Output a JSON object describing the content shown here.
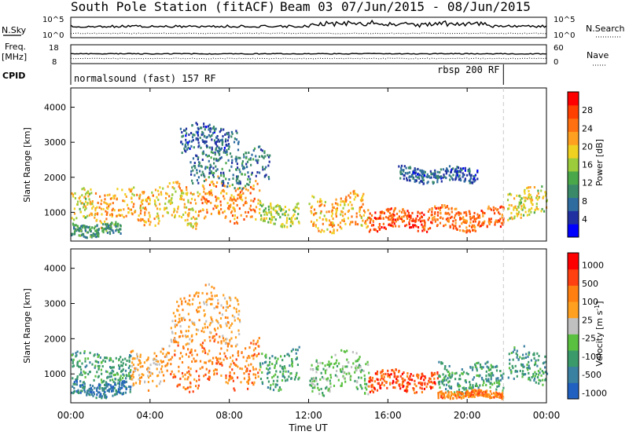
{
  "header": {
    "title": "South Pole Station (fitACF)",
    "beam": "Beam 03",
    "dates": "07/Jun/2015 - 08/Jun/2015"
  },
  "summary": {
    "nsky_label": "N.Sky",
    "nsearch_label": "N.Search",
    "freq_label_1": "Freq.",
    "freq_label_2": "[MHz]",
    "nave_label": "Nave",
    "cpid_label": "CPID",
    "noise_ticks": [
      "10^5",
      "10^0"
    ],
    "freq_ticks": [
      "18",
      "8"
    ],
    "nave_ticks": [
      "60",
      "0"
    ],
    "cpid_segments": [
      {
        "label": "normalsound (fast) 157 RF",
        "start_hour": 0,
        "end_hour": 21.83
      },
      {
        "label": "rbsp 200 RF",
        "start_hour": 21.83,
        "end_hour": 24
      }
    ]
  },
  "colors": {
    "power": [
      "#0000ff",
      "#2030a0",
      "#2e6ca0",
      "#3a8a6a",
      "#4aa84a",
      "#9ccc3c",
      "#f0d020",
      "#ffa020",
      "#ff7010",
      "#ff4000",
      "#ff0000"
    ],
    "velocity": [
      "#2060c0",
      "#3a80a0",
      "#3a9a6a",
      "#5ac040",
      "#c0c0c0",
      "#ffa020",
      "#ff8010",
      "#ff4010",
      "#ff0000"
    ]
  },
  "chart_data": [
    {
      "type": "heatmap",
      "name": "power",
      "xlabel": "",
      "ylabel": "Slant Range [km]",
      "xlim": [
        0,
        24
      ],
      "ylim": [
        180,
        4550
      ],
      "yticks": [
        1000,
        2000,
        3000,
        4000
      ],
      "colorbar_label": "Power [dB]",
      "colorbar_ticks": [
        4,
        8,
        12,
        16,
        20,
        24,
        28
      ],
      "colorbar_range": [
        0,
        32
      ],
      "bands": [
        {
          "t0": 0.0,
          "t1": 1.2,
          "lo": 750,
          "hi": 1600,
          "v": 18
        },
        {
          "t0": 1.2,
          "t1": 4.0,
          "lo": 700,
          "hi": 1700,
          "v": 22
        },
        {
          "t0": 4.0,
          "t1": 6.5,
          "lo": 700,
          "hi": 1800,
          "v": 20
        },
        {
          "t0": 6.5,
          "t1": 9.5,
          "lo": 800,
          "hi": 1900,
          "v": 24
        },
        {
          "t0": 9.5,
          "t1": 11.5,
          "lo": 700,
          "hi": 1300,
          "v": 16
        },
        {
          "t0": 12.0,
          "t1": 15.0,
          "lo": 550,
          "hi": 1500,
          "v": 22
        },
        {
          "t0": 15.0,
          "t1": 18.0,
          "lo": 550,
          "hi": 1100,
          "v": 28
        },
        {
          "t0": 18.0,
          "t1": 21.8,
          "lo": 550,
          "hi": 1150,
          "v": 26
        },
        {
          "t0": 22.0,
          "t1": 24.0,
          "lo": 900,
          "hi": 1700,
          "v": 18
        },
        {
          "t0": 0.0,
          "t1": 2.5,
          "lo": 350,
          "hi": 700,
          "v": 10
        },
        {
          "t0": 6.0,
          "t1": 10.0,
          "lo": 1800,
          "hi": 2800,
          "v": 8
        },
        {
          "t0": 5.5,
          "t1": 8.5,
          "lo": 2800,
          "hi": 3500,
          "v": 6
        },
        {
          "t0": 16.5,
          "t1": 20.5,
          "lo": 1900,
          "hi": 2300,
          "v": 6
        }
      ]
    },
    {
      "type": "heatmap",
      "name": "velocity",
      "xlabel": "Time UT",
      "ylabel": "Slant Range [km]",
      "xlim": [
        0,
        24
      ],
      "ylim": [
        180,
        4550
      ],
      "yticks": [
        1000,
        2000,
        3000,
        4000
      ],
      "xticks": [
        "00:00",
        "04:00",
        "08:00",
        "12:00",
        "16:00",
        "20:00",
        "00:00"
      ],
      "colorbar_label": "Velocity [m s^-1]",
      "colorbar_ticks": [
        "1000",
        "500",
        "100",
        "25",
        "-25",
        "-100",
        "-500",
        "-1000"
      ],
      "bands": [
        {
          "t0": 0.0,
          "t1": 3.0,
          "lo": 800,
          "hi": 1600,
          "v": 2
        },
        {
          "t0": 0.0,
          "t1": 3.0,
          "lo": 400,
          "hi": 800,
          "v": 1
        },
        {
          "t0": 3.0,
          "t1": 5.0,
          "lo": 700,
          "hi": 1700,
          "v": 5
        },
        {
          "t0": 5.0,
          "t1": 9.5,
          "lo": 700,
          "hi": 2000,
          "v": 6
        },
        {
          "t0": 5.0,
          "t1": 8.5,
          "lo": 2000,
          "hi": 3400,
          "v": 5
        },
        {
          "t0": 9.5,
          "t1": 11.5,
          "lo": 700,
          "hi": 1700,
          "v": 2
        },
        {
          "t0": 12.0,
          "t1": 15.0,
          "lo": 550,
          "hi": 1600,
          "v": 3
        },
        {
          "t0": 15.0,
          "t1": 18.5,
          "lo": 550,
          "hi": 1100,
          "v": 7
        },
        {
          "t0": 18.5,
          "t1": 21.8,
          "lo": 550,
          "hi": 1300,
          "v": 2
        },
        {
          "t0": 18.5,
          "t1": 21.8,
          "lo": 350,
          "hi": 550,
          "v": 6
        },
        {
          "t0": 22.0,
          "t1": 24.0,
          "lo": 800,
          "hi": 1700,
          "v": 2
        }
      ]
    }
  ]
}
